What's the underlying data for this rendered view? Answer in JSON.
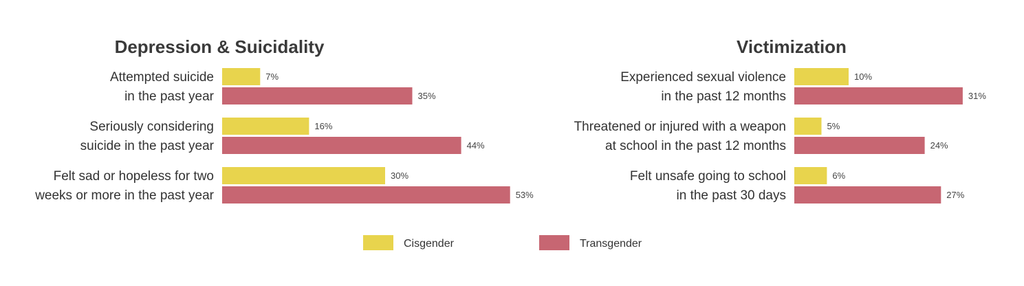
{
  "colors": {
    "cisgender": "#e8d44d",
    "transgender": "#c76672",
    "title_text": "#3a3a3a",
    "label_text": "#333333",
    "value_text": "#444444"
  },
  "legend": {
    "placement": "bottom-center",
    "items": [
      {
        "name": "Cisgender",
        "color_key": "cisgender"
      },
      {
        "name": "Transgender",
        "color_key": "transgender"
      }
    ]
  },
  "chart_data": [
    {
      "type": "bar",
      "orientation": "horizontal",
      "title": "Depression & Suicidality",
      "value_unit": "%",
      "xlim": [
        0,
        60
      ],
      "grid": false,
      "categories": [
        [
          "Attempted suicide",
          "in the past year"
        ],
        [
          "Seriously considering",
          "suicide in the past year"
        ],
        [
          "Felt sad or hopeless for two",
          "weeks or more in the past year"
        ]
      ],
      "series": [
        {
          "name": "Cisgender",
          "values": [
            7,
            16,
            30
          ]
        },
        {
          "name": "Transgender",
          "values": [
            35,
            44,
            53
          ]
        }
      ]
    },
    {
      "type": "bar",
      "orientation": "horizontal",
      "title": "Victimization",
      "value_unit": "%",
      "xlim": [
        0,
        60
      ],
      "grid": false,
      "categories": [
        [
          "Experienced sexual violence",
          "in the past 12 months"
        ],
        [
          "Threatened or injured with a weapon",
          "at school in the past 12 months"
        ],
        [
          "Felt unsafe going to school",
          "in the past 30 days"
        ]
      ],
      "series": [
        {
          "name": "Cisgender",
          "values": [
            10,
            5,
            6
          ]
        },
        {
          "name": "Transgender",
          "values": [
            31,
            24,
            27
          ]
        }
      ]
    }
  ]
}
